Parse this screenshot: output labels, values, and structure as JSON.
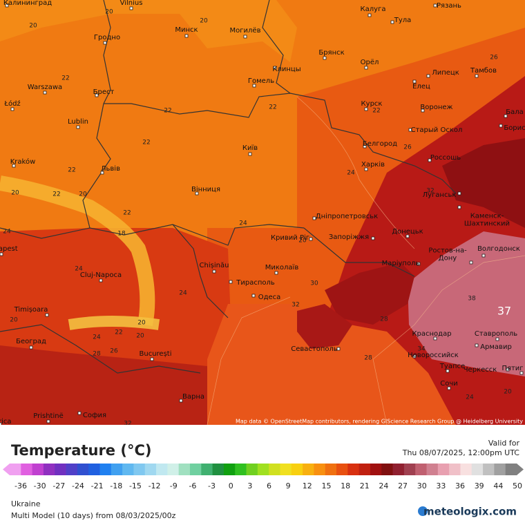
{
  "map": {
    "cities": [
      {
        "name": "Калининград"
      },
      {
        "name": "Vilnius"
      },
      {
        "name": "Калуга"
      },
      {
        "name": "Рязань"
      },
      {
        "name": "Минск"
      },
      {
        "name": "Могилёв"
      },
      {
        "name": "Гродно"
      },
      {
        "name": "Тула"
      },
      {
        "name": "Брянск"
      },
      {
        "name": "Орёл"
      },
      {
        "name": "Клинцы"
      },
      {
        "name": "Warszawa"
      },
      {
        "name": "Гомель"
      },
      {
        "name": "Липецк"
      },
      {
        "name": "Тамбов"
      },
      {
        "name": "Брест"
      },
      {
        "name": "Елец"
      },
      {
        "name": "Łódź"
      },
      {
        "name": "Курск"
      },
      {
        "name": "Воронеж"
      },
      {
        "name": "Бала"
      },
      {
        "name": "Lublin"
      },
      {
        "name": "Старый Оскол"
      },
      {
        "name": "Борис"
      },
      {
        "name": "Белгород"
      },
      {
        "name": "Київ"
      },
      {
        "name": "Kraków"
      },
      {
        "name": "Львів"
      },
      {
        "name": "Харків"
      },
      {
        "name": "Россошь"
      },
      {
        "name": "Вінниця"
      },
      {
        "name": "Дніпропетровськ"
      },
      {
        "name": "Луганськ"
      },
      {
        "lines": [
          "Каменск-",
          "Шахтинский"
        ]
      },
      {
        "name": "Кривий Ріг"
      },
      {
        "name": "Запоріжжя"
      },
      {
        "name": "Донецьк"
      },
      {
        "name": "Волгодонск"
      },
      {
        "lines": [
          "Ростов-на-",
          "Дону"
        ]
      },
      {
        "name": "Chișinău"
      },
      {
        "name": "Миколаїв"
      },
      {
        "name": "Маріуполь"
      },
      {
        "name": "Cluj-Napoca"
      },
      {
        "name": "Тирасполь"
      },
      {
        "name": "Одеса"
      },
      {
        "name": "Timișoara"
      },
      {
        "name": "Краснодар"
      },
      {
        "name": "Ставрополь"
      },
      {
        "name": "Београд"
      },
      {
        "name": "Севастополь"
      },
      {
        "name": "Армавир"
      },
      {
        "name": "București"
      },
      {
        "name": "Новороссийск"
      },
      {
        "name": "Туапсе"
      },
      {
        "name": "Черкесск"
      },
      {
        "name": "Пятиг"
      },
      {
        "name": "Сочи"
      },
      {
        "name": "Варна"
      },
      {
        "name": "Prishtinë"
      },
      {
        "name": "София"
      },
      {
        "name": "Budapest"
      },
      {
        "name": "Podgorica"
      }
    ],
    "isotherm_labels": [
      20,
      20,
      20,
      22,
      22,
      22,
      22,
      22,
      26,
      22,
      24,
      26,
      20,
      22,
      20,
      22,
      24,
      32,
      18,
      24,
      20,
      24,
      30,
      24,
      32,
      38,
      20,
      20,
      22,
      20,
      24,
      28,
      26,
      28,
      34,
      28,
      24,
      20,
      32
    ],
    "max_label": 37,
    "attribution": "Map data © OpenStreetMap contributors, rendering GIScience Research Group @ Heidelberg University"
  },
  "legend": {
    "title": "Temperature (°C)",
    "ticks": [
      -36,
      -30,
      -27,
      -24,
      -21,
      -18,
      -15,
      -12,
      -9,
      -6,
      -3,
      0,
      3,
      6,
      9,
      12,
      15,
      18,
      21,
      24,
      27,
      30,
      33,
      36,
      39,
      44,
      50
    ],
    "colors": [
      "#f0a0f0",
      "#e060e0",
      "#c040d0",
      "#9030c0",
      "#7030c0",
      "#5040c8",
      "#3050d0",
      "#2060e0",
      "#2080f0",
      "#40a0f0",
      "#60b8f0",
      "#80c8f0",
      "#a0d8f0",
      "#c0e8f0",
      "#d0f0e8",
      "#a0e0c0",
      "#70d0a0",
      "#40b070",
      "#209040",
      "#10a010",
      "#30c020",
      "#70d020",
      "#a0e020",
      "#d0e020",
      "#f0e020",
      "#f8d010",
      "#f8b010",
      "#f89010",
      "#f07010",
      "#e85010",
      "#d83010",
      "#c02010",
      "#a01010",
      "#801010",
      "#902030",
      "#a04050",
      "#c06070",
      "#d08090",
      "#e8a0b0",
      "#f0c0c8",
      "#f8e0e0",
      "#e0e0e0",
      "#c0c0c0",
      "#a0a0a0",
      "#808080"
    ]
  },
  "valid": {
    "label": "Valid for",
    "time": "Thu 08/07/2025, 12:00pm UTC"
  },
  "footer": {
    "region": "Ukraine",
    "model": "Multi Model (10 days) from 08/03/2025/00z",
    "brand": "meteologix.com"
  }
}
